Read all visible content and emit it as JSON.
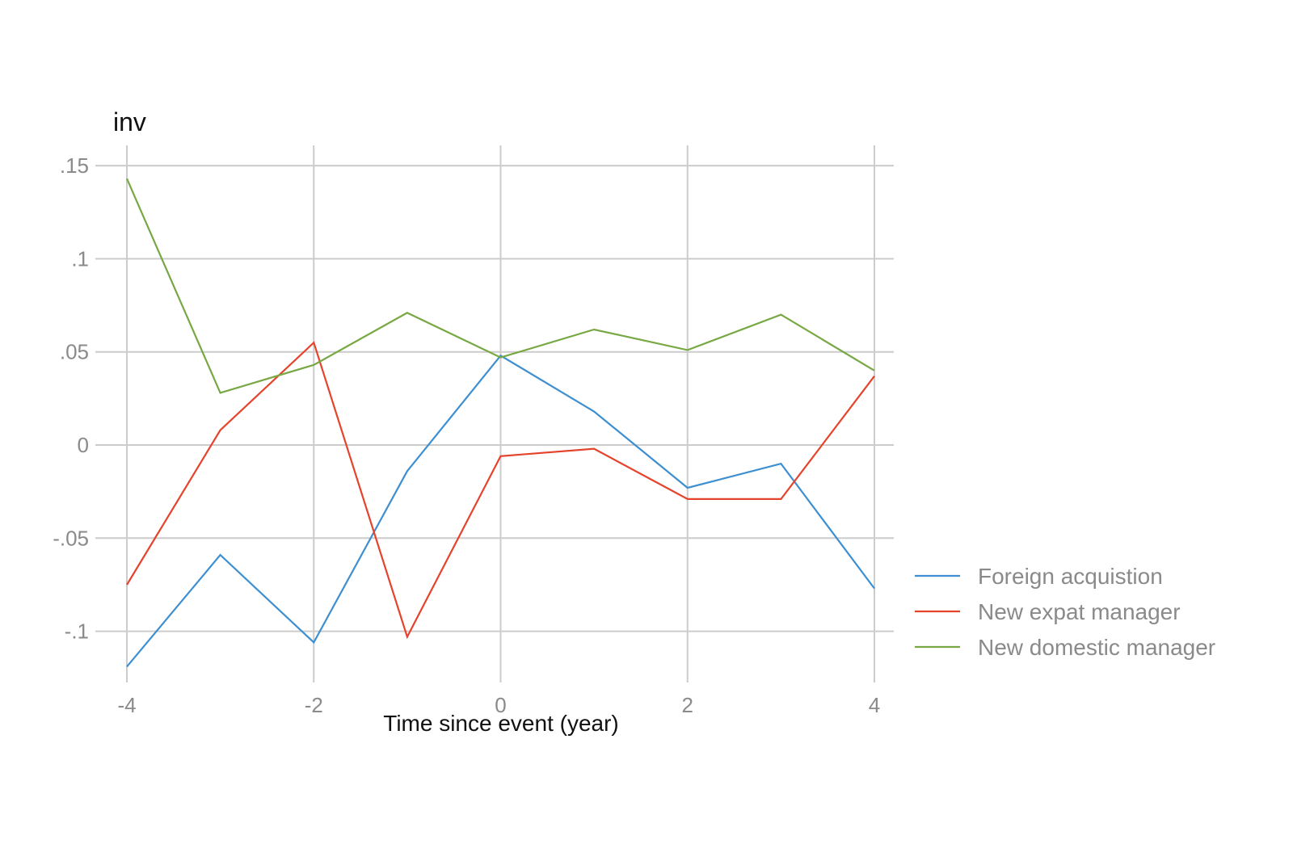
{
  "chart_data": {
    "type": "line",
    "title": "inv",
    "xlabel": "Time since event (year)",
    "ylabel": "",
    "x": [
      -4,
      -3,
      -2,
      -1,
      0,
      1,
      2,
      3,
      4
    ],
    "xlim": [
      -4,
      4
    ],
    "ylim": [
      -0.12,
      0.15
    ],
    "x_ticks": [
      -4,
      -2,
      0,
      2,
      4
    ],
    "x_tick_labels": [
      "-4",
      "-2",
      "0",
      "2",
      "4"
    ],
    "y_ticks": [
      -0.1,
      -0.05,
      0,
      0.05,
      0.1,
      0.15
    ],
    "y_tick_labels": [
      "-.1",
      "-.05",
      "0",
      ".05",
      ".1",
      ".15"
    ],
    "grid": true,
    "legend_position": "right",
    "series": [
      {
        "name": "Foreign acquistion",
        "color": "#3d8fd1",
        "values": [
          -0.119,
          -0.059,
          -0.106,
          -0.014,
          0.048,
          0.018,
          -0.023,
          -0.01,
          -0.077
        ]
      },
      {
        "name": "New expat manager",
        "color": "#e5432b",
        "values": [
          -0.075,
          0.008,
          0.055,
          -0.103,
          -0.006,
          -0.002,
          -0.029,
          -0.029,
          0.037
        ]
      },
      {
        "name": "New domestic manager",
        "color": "#77a843",
        "values": [
          0.143,
          0.028,
          0.043,
          0.071,
          0.047,
          0.062,
          0.051,
          0.07,
          0.04
        ]
      }
    ]
  }
}
